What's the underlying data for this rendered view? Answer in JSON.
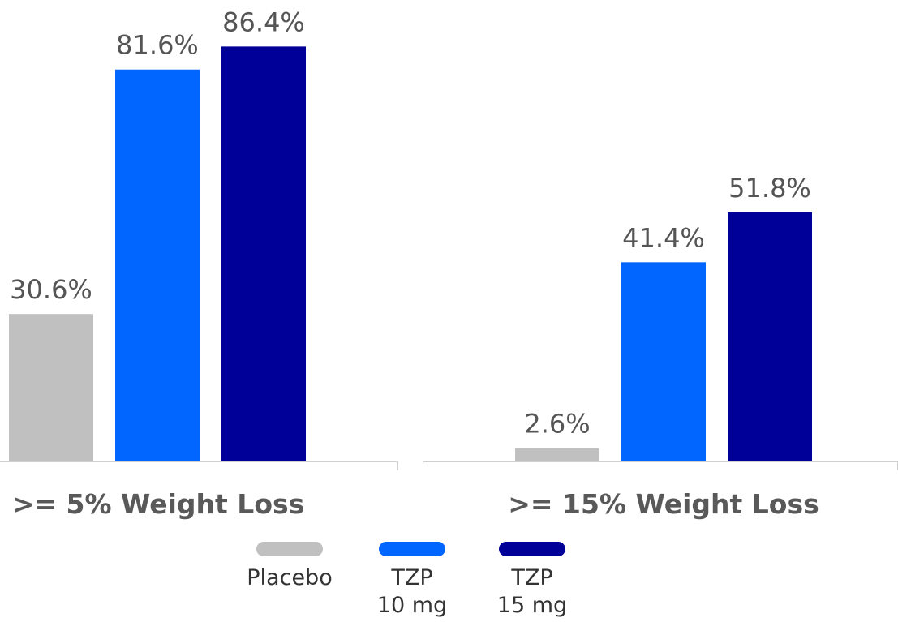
{
  "chart_data": {
    "type": "bar",
    "categories": [
      ">= 5% Weight Loss",
      ">= 15% Weight Loss"
    ],
    "series": [
      {
        "name": "Placebo",
        "values": [
          30.6,
          2.6
        ],
        "labels": [
          "30.6%",
          "2.6%"
        ],
        "color": "#c0c0c0"
      },
      {
        "name": "TZP\n10 mg",
        "values": [
          81.6,
          41.4
        ],
        "labels": [
          "81.6%",
          "41.4%"
        ],
        "color": "#0066ff"
      },
      {
        "name": "TZP\n15 mg",
        "values": [
          86.4,
          51.8
        ],
        "labels": [
          "86.4%",
          "51.8%"
        ],
        "color": "#000099"
      }
    ],
    "ylim": [
      0,
      100
    ],
    "legend_position": "bottom",
    "grid": false
  },
  "legend": [
    {
      "label": "Placebo",
      "color": "#c0c0c0"
    },
    {
      "label": "TZP\n10 mg",
      "color": "#0066ff"
    },
    {
      "label": "TZP\n15 mg",
      "color": "#000099"
    }
  ]
}
